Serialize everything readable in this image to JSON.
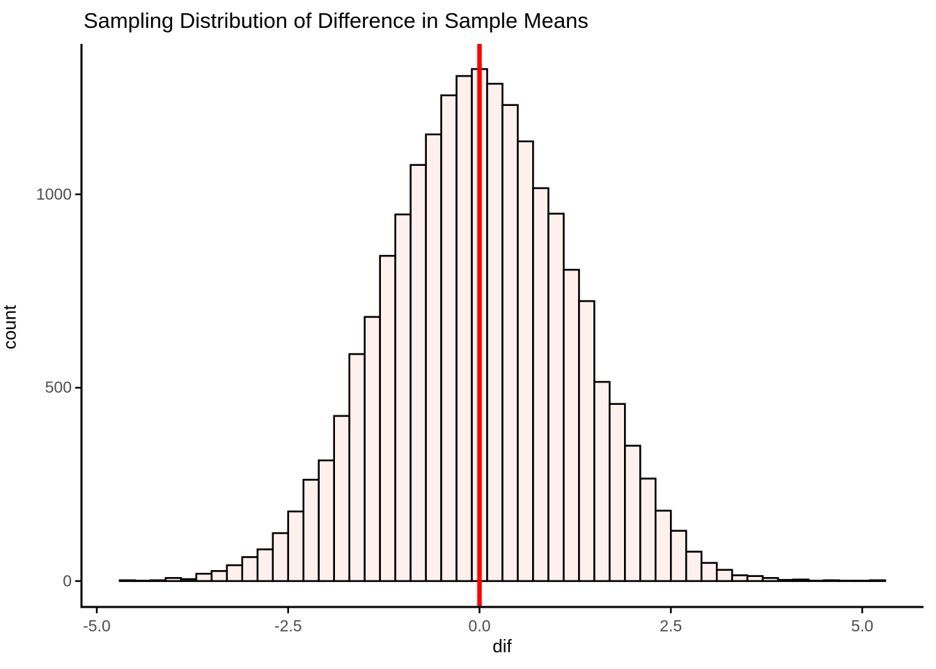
{
  "title": "Sampling Distribution of Difference in Sample Means",
  "chart_data": {
    "type": "bar",
    "subtype": "histogram",
    "title": "Sampling Distribution of Difference in Sample Means",
    "xlabel": "dif",
    "ylabel": "count",
    "bin_width": 0.2,
    "bin_centers": [
      -4.6,
      -4.4,
      -4.2,
      -4.0,
      -3.8,
      -3.6,
      -3.4,
      -3.2,
      -3.0,
      -2.8,
      -2.6,
      -2.4,
      -2.2,
      -2.0,
      -1.8,
      -1.6,
      -1.4,
      -1.2,
      -1.0,
      -0.8,
      -0.6,
      -0.4,
      -0.2,
      0.0,
      0.2,
      0.4,
      0.6,
      0.8,
      1.0,
      1.2,
      1.4,
      1.6,
      1.8,
      2.0,
      2.2,
      2.4,
      2.6,
      2.8,
      3.0,
      3.2,
      3.4,
      3.6,
      3.8,
      4.0,
      4.2,
      4.4,
      4.6,
      4.8,
      5.0,
      5.2
    ],
    "counts": [
      2,
      1,
      2,
      8,
      5,
      19,
      26,
      41,
      62,
      82,
      124,
      180,
      262,
      312,
      427,
      587,
      683,
      841,
      948,
      1076,
      1155,
      1256,
      1306,
      1324,
      1286,
      1231,
      1137,
      1016,
      950,
      805,
      724,
      515,
      458,
      350,
      265,
      182,
      130,
      76,
      47,
      29,
      15,
      13,
      8,
      3,
      4,
      1,
      2,
      1,
      1,
      2
    ],
    "x_ticks": [
      -5.0,
      -2.5,
      0.0,
      2.5,
      5.0
    ],
    "x_tick_labels": [
      "-5.0",
      "-2.5",
      "0.0",
      "2.5",
      "5.0"
    ],
    "y_ticks": [
      0,
      500,
      1000
    ],
    "y_tick_labels": [
      "0",
      "500",
      "1000"
    ],
    "xlim": [
      -5.2,
      5.8
    ],
    "ylim": [
      -67,
      1389
    ],
    "grid": "off",
    "legend": "none",
    "vline": {
      "x": 0.0,
      "color": "#ff0000"
    },
    "bar_fill": "#fdf0ed",
    "bar_stroke": "#000000",
    "axis_color": "#000000",
    "tick_label_color": "#4d4d4d",
    "background": "#ffffff"
  }
}
